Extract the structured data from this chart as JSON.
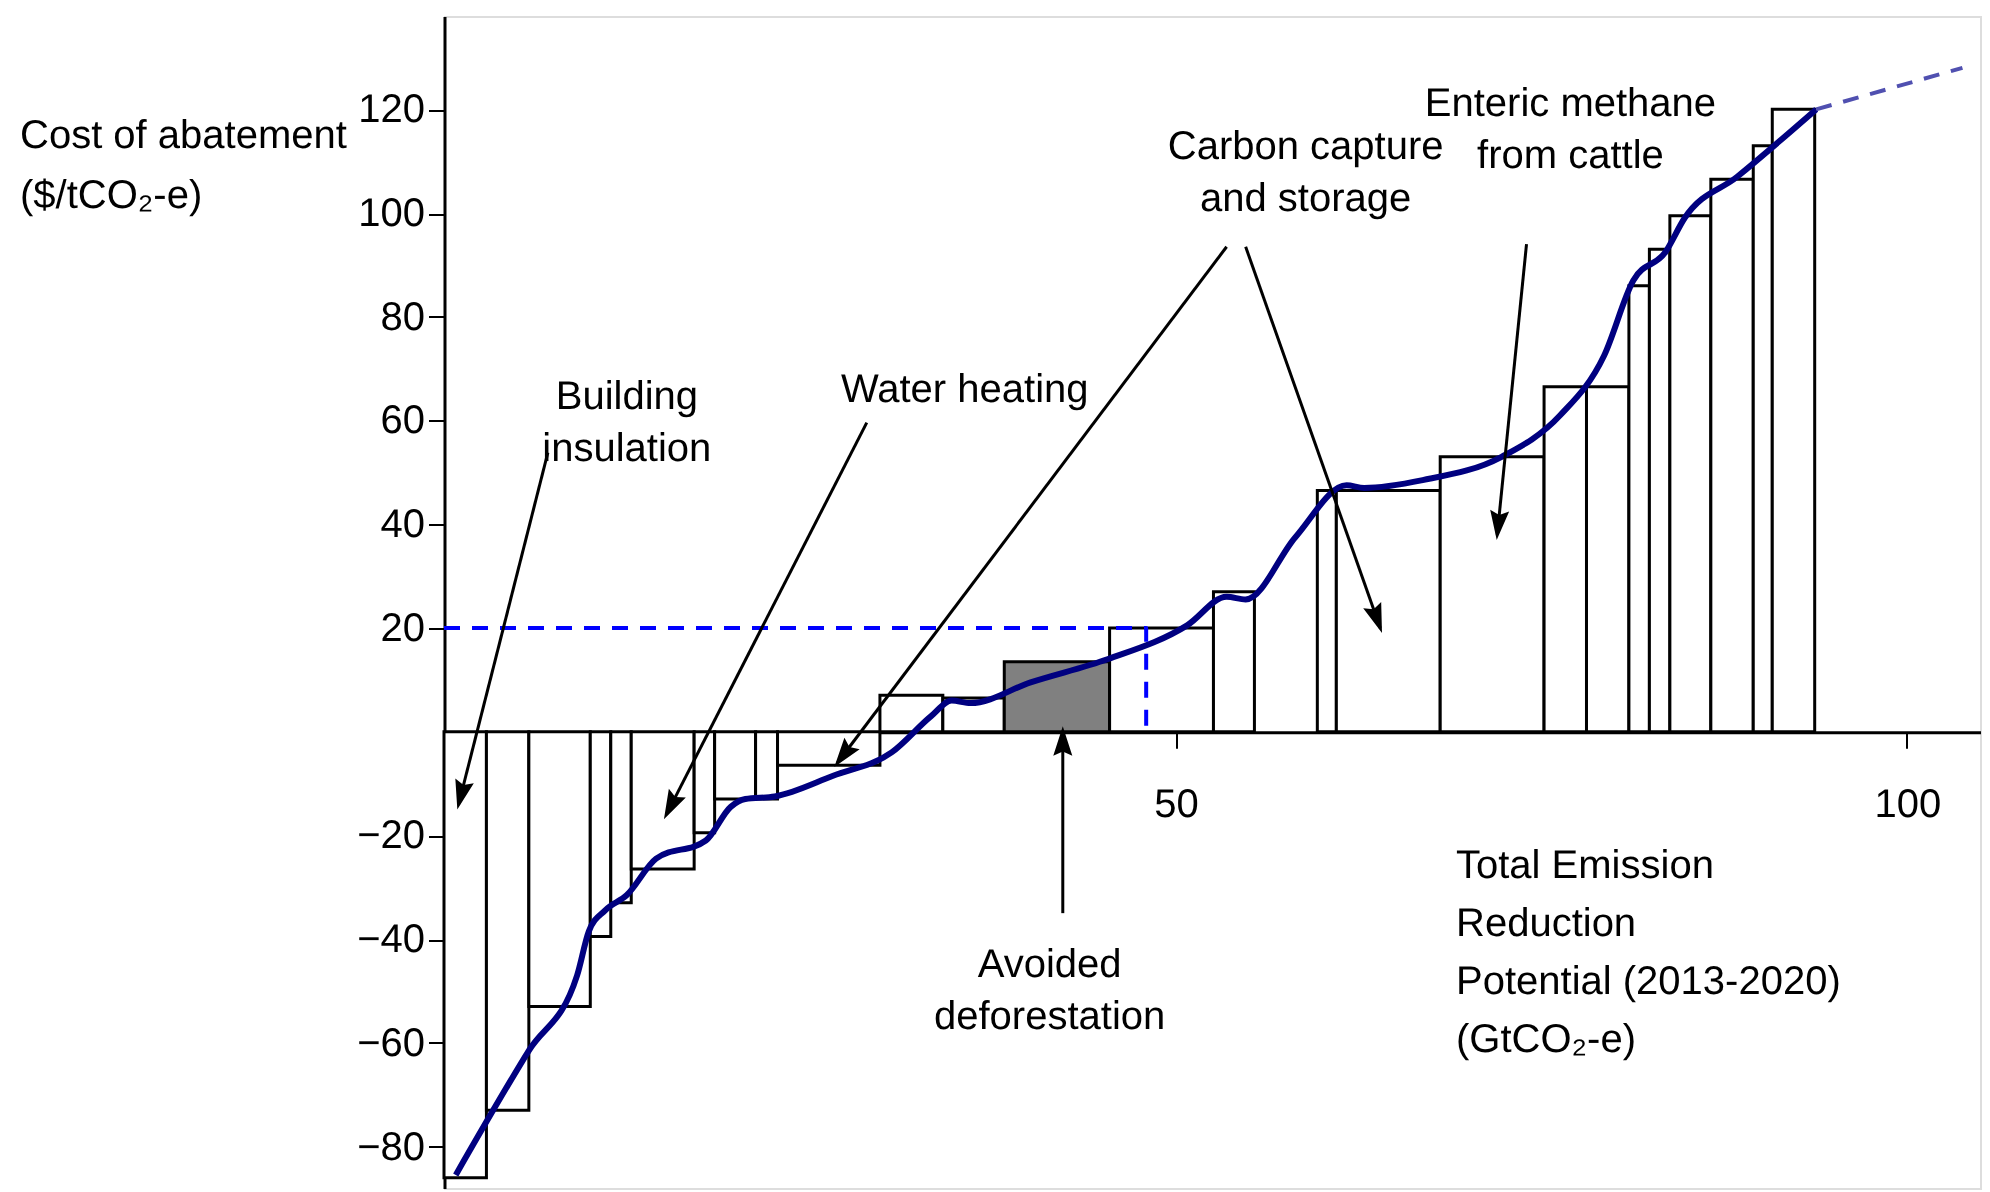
{
  "chart_data": {
    "type": "histogram",
    "xlabel": "Total Emission\nReduction\nPotential (2013-2020)\n(GtCO₂-e)",
    "ylabel": "Cost of abatement\n($/tCO₂-e)",
    "bins": [
      0,
      2.9,
      5.8,
      10.0,
      11.4,
      12.8,
      17.1,
      18.5,
      21.3,
      22.8,
      29.8,
      34.1,
      38.3,
      45.5,
      52.6,
      55.4,
      59.7,
      61.0,
      68.1,
      75.2,
      78.1,
      81.0,
      82.4,
      83.8,
      86.6,
      89.5,
      90.8,
      93.7
    ],
    "values": [
      -86,
      -73,
      -53,
      -39.5,
      -33,
      -26.5,
      -19.5,
      -13,
      -13,
      -6.5,
      7,
      6.5,
      13.5,
      20,
      27,
      null,
      46.5,
      46.5,
      53,
      66.5,
      66.5,
      86,
      93,
      99.5,
      106.5,
      113,
      120
    ],
    "colors": [
      "#ffffff",
      "#ffffff",
      "#ffffff",
      "#ffffff",
      "#ffffff",
      "#ffffff",
      "#ffffff",
      "#ffffff",
      "#ffffff",
      "#ffffff",
      "#ffffff",
      "#ffffff",
      "#808080",
      "#ffffff",
      "#ffffff",
      "#ffffff",
      "#ffffff",
      "#ffffff",
      "#ffffff",
      "#ffffff",
      "#ffffff",
      "#ffffff",
      "#ffffff",
      "#ffffff",
      "#ffffff",
      "#ffffff",
      "#ffffff"
    ],
    "series": [
      {
        "type": "line",
        "color": "#000080",
        "line_style": "solid",
        "x": [
          0.8,
          5.8,
          9.1,
          9.9,
          11,
          12.5,
          14.5,
          17.9,
          19.6,
          20.6,
          22.6,
          26.6,
          30.6,
          33.3,
          34.7,
          36,
          40.1,
          45.4,
          50.8,
          53.5,
          54.8,
          58.2,
          61.7,
          62.9,
          66.9,
          72.3,
          76.3,
          79.3,
          81.3,
          83.5,
          84.8,
          88.4,
          93.8
        ],
        "values": [
          -85.5,
          -61.5,
          -47,
          -38.5,
          -34.5,
          -31.5,
          -24.5,
          -21,
          -14.5,
          -13,
          -12.5,
          -8.5,
          -4,
          3,
          6,
          5.5,
          9.5,
          14,
          20.5,
          26,
          25.5,
          37.5,
          47.5,
          47,
          48.5,
          53,
          61,
          72.5,
          87,
          92.5,
          99,
          107,
          120
        ]
      },
      {
        "type": "line",
        "color": "#5050b0",
        "line_style": "dashed",
        "x": [
          93.8,
          103.8
        ],
        "values": [
          120,
          128
        ]
      },
      {
        "type": "line",
        "color": "#0000ff",
        "line_style": "dashed",
        "x": [
          0,
          48,
          48
        ],
        "values": [
          20,
          20,
          0
        ]
      }
    ],
    "xlim": [
      0,
      105
    ],
    "ylim": [
      -88,
      138
    ],
    "xticks": [
      50,
      100
    ],
    "yticks": [
      -80,
      -60,
      -40,
      -20,
      20,
      40,
      60,
      80,
      100,
      120
    ],
    "grid": false,
    "annotations": [
      "Building\ninsulation",
      "Water heating",
      "Carbon capture\nand storage",
      "Enteric methane\nfrom cattle",
      {
        "text": "Avoided\ndeforestation",
        "x": 42.3,
        "y": 0
      }
    ]
  }
}
